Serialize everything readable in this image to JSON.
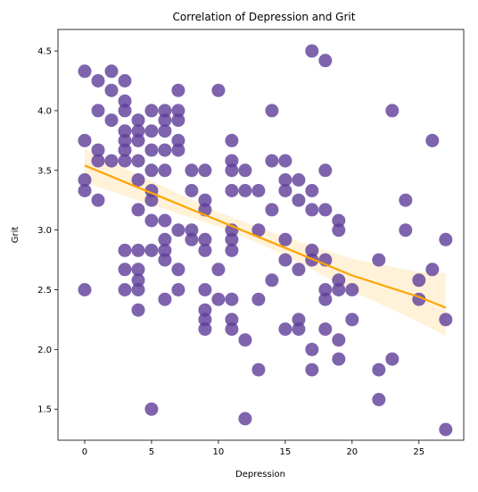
{
  "chart_data": {
    "type": "scatter",
    "title": "Correlation of Depression and Grit",
    "xlabel": "Depression",
    "ylabel": "Grit",
    "xlim": [
      -2.0,
      28.35
    ],
    "ylim": [
      1.24,
      4.68
    ],
    "xticks": [
      0,
      5,
      10,
      15,
      20,
      25
    ],
    "yticks": [
      1.5,
      2.0,
      2.5,
      3.0,
      3.5,
      4.0,
      4.5
    ],
    "grid": false,
    "legend": "none",
    "colors": {
      "points": "#5e3c99",
      "line": "#ffa500",
      "band": "#ffa500"
    },
    "regression": {
      "x": [
        0,
        5,
        10,
        15,
        20,
        25,
        27
      ],
      "y": [
        3.54,
        3.31,
        3.08,
        2.85,
        2.62,
        2.44,
        2.35
      ],
      "ci_low": [
        3.4,
        3.21,
        3.03,
        2.79,
        2.49,
        2.23,
        2.11
      ],
      "ci_high": [
        3.68,
        3.41,
        3.15,
        2.94,
        2.76,
        2.65,
        2.64
      ]
    },
    "points": [
      [
        0,
        4.33
      ],
      [
        0,
        3.75
      ],
      [
        0,
        3.42
      ],
      [
        0,
        3.33
      ],
      [
        0,
        2.5
      ],
      [
        1,
        4.25
      ],
      [
        1,
        4.0
      ],
      [
        1,
        3.67
      ],
      [
        1,
        3.58
      ],
      [
        1,
        3.25
      ],
      [
        2,
        4.33
      ],
      [
        2,
        4.17
      ],
      [
        2,
        3.92
      ],
      [
        2,
        3.58
      ],
      [
        3,
        4.25
      ],
      [
        3,
        4.08
      ],
      [
        3,
        4.0
      ],
      [
        3,
        3.83
      ],
      [
        3,
        3.75
      ],
      [
        3,
        3.67
      ],
      [
        3,
        3.58
      ],
      [
        3,
        2.83
      ],
      [
        3,
        2.67
      ],
      [
        3,
        2.5
      ],
      [
        4,
        3.92
      ],
      [
        4,
        3.83
      ],
      [
        4,
        3.75
      ],
      [
        4,
        3.58
      ],
      [
        4,
        3.42
      ],
      [
        4,
        3.17
      ],
      [
        4,
        2.83
      ],
      [
        4,
        2.67
      ],
      [
        4,
        2.58
      ],
      [
        4,
        2.5
      ],
      [
        4,
        2.33
      ],
      [
        5,
        4.0
      ],
      [
        5,
        3.83
      ],
      [
        5,
        3.67
      ],
      [
        5,
        3.5
      ],
      [
        5,
        3.33
      ],
      [
        5,
        3.25
      ],
      [
        5,
        3.08
      ],
      [
        5,
        2.83
      ],
      [
        5,
        1.5
      ],
      [
        6,
        4.0
      ],
      [
        6,
        3.92
      ],
      [
        6,
        3.83
      ],
      [
        6,
        3.67
      ],
      [
        6,
        3.5
      ],
      [
        6,
        3.08
      ],
      [
        6,
        2.92
      ],
      [
        6,
        2.83
      ],
      [
        6,
        2.75
      ],
      [
        6,
        2.42
      ],
      [
        7,
        4.17
      ],
      [
        7,
        4.0
      ],
      [
        7,
        3.92
      ],
      [
        7,
        3.75
      ],
      [
        7,
        3.67
      ],
      [
        7,
        3.0
      ],
      [
        7,
        2.67
      ],
      [
        7,
        2.5
      ],
      [
        8,
        3.5
      ],
      [
        8,
        3.33
      ],
      [
        8,
        3.0
      ],
      [
        8,
        2.92
      ],
      [
        9,
        3.5
      ],
      [
        9,
        3.25
      ],
      [
        9,
        3.17
      ],
      [
        9,
        2.92
      ],
      [
        9,
        2.83
      ],
      [
        9,
        2.5
      ],
      [
        9,
        2.33
      ],
      [
        9,
        2.25
      ],
      [
        9,
        2.17
      ],
      [
        10,
        4.17
      ],
      [
        10,
        2.67
      ],
      [
        10,
        2.42
      ],
      [
        11,
        3.75
      ],
      [
        11,
        3.58
      ],
      [
        11,
        3.5
      ],
      [
        11,
        3.33
      ],
      [
        11,
        3.0
      ],
      [
        11,
        2.92
      ],
      [
        11,
        2.83
      ],
      [
        11,
        2.42
      ],
      [
        11,
        2.25
      ],
      [
        11,
        2.17
      ],
      [
        12,
        3.5
      ],
      [
        12,
        3.33
      ],
      [
        12,
        2.08
      ],
      [
        12,
        1.42
      ],
      [
        13,
        3.33
      ],
      [
        13,
        3.0
      ],
      [
        13,
        2.42
      ],
      [
        13,
        1.83
      ],
      [
        14,
        4.0
      ],
      [
        14,
        3.58
      ],
      [
        14,
        3.17
      ],
      [
        14,
        2.58
      ],
      [
        15,
        3.58
      ],
      [
        15,
        3.42
      ],
      [
        15,
        3.33
      ],
      [
        15,
        2.92
      ],
      [
        15,
        2.75
      ],
      [
        15,
        2.17
      ],
      [
        16,
        3.42
      ],
      [
        16,
        3.25
      ],
      [
        16,
        2.67
      ],
      [
        16,
        2.25
      ],
      [
        16,
        2.17
      ],
      [
        17,
        4.5
      ],
      [
        17,
        3.33
      ],
      [
        17,
        3.17
      ],
      [
        17,
        2.83
      ],
      [
        17,
        2.75
      ],
      [
        17,
        2.0
      ],
      [
        17,
        1.83
      ],
      [
        18,
        4.42
      ],
      [
        18,
        3.5
      ],
      [
        18,
        3.17
      ],
      [
        18,
        2.75
      ],
      [
        18,
        2.5
      ],
      [
        18,
        2.42
      ],
      [
        18,
        2.17
      ],
      [
        19,
        3.08
      ],
      [
        19,
        3.0
      ],
      [
        19,
        2.58
      ],
      [
        19,
        2.5
      ],
      [
        19,
        2.08
      ],
      [
        19,
        1.92
      ],
      [
        20,
        2.5
      ],
      [
        20,
        2.25
      ],
      [
        22,
        2.75
      ],
      [
        22,
        1.83
      ],
      [
        22,
        1.58
      ],
      [
        23,
        4.0
      ],
      [
        23,
        1.92
      ],
      [
        24,
        3.25
      ],
      [
        24,
        3.0
      ],
      [
        25,
        2.58
      ],
      [
        25,
        2.42
      ],
      [
        26,
        3.75
      ],
      [
        26,
        2.67
      ],
      [
        27,
        2.92
      ],
      [
        27,
        2.25
      ],
      [
        27,
        1.33
      ]
    ]
  }
}
